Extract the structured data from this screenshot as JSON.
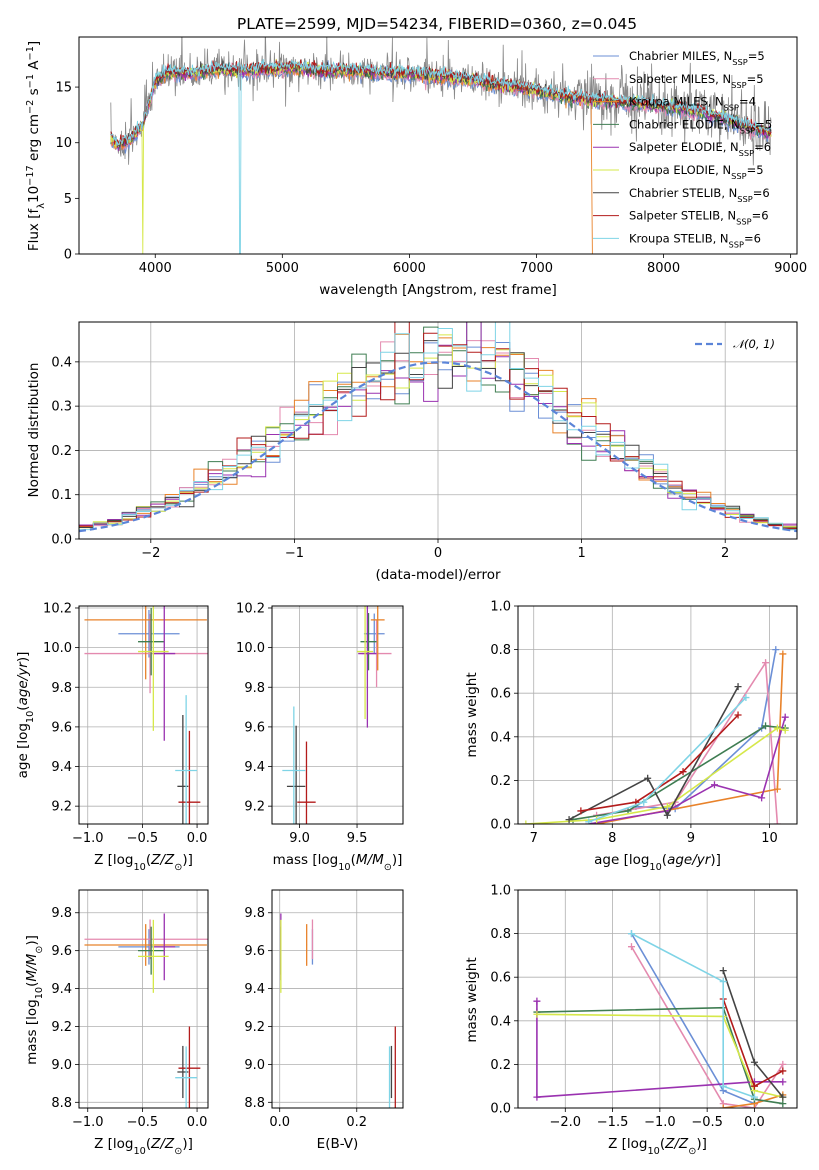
{
  "chart_data": [
    {
      "id": "spectrum",
      "type": "line",
      "title": "PLATE=2599, MJD=54234, FIBERID=0360, z=0.045",
      "xlabel": "wavelength [Angstrom, rest frame]",
      "ylabel": "Flux [f_λ10^-17 erg cm^-2 s^-1 A^-1]",
      "xlim": [
        3400,
        9050
      ],
      "ylim": [
        0,
        19.5
      ],
      "xticks": [
        4000,
        5000,
        6000,
        7000,
        8000,
        9000
      ],
      "yticks": [
        0,
        5,
        10,
        15
      ],
      "grid": false,
      "legend_location": "top-right",
      "legend": [
        {
          "label": "Chabrier MILES, N_SSP=5",
          "color": "#6b8fd6"
        },
        {
          "label": "Salpeter MILES, N_SSP=5",
          "color": "#e48aaf"
        },
        {
          "label": "Kroupa MILES, N_SSP=4",
          "color": "#e8822a"
        },
        {
          "label": "Chabrier ELODIE, N_SSP=5",
          "color": "#3f7d52"
        },
        {
          "label": "Salpeter ELODIE, N_SSP=6",
          "color": "#9a32b0"
        },
        {
          "label": "Kroupa ELODIE, N_SSP=5",
          "color": "#d6e84a"
        },
        {
          "label": "Chabrier STELIB, N_SSP=6",
          "color": "#444444"
        },
        {
          "label": "Salpeter STELIB, N_SSP=6",
          "color": "#b31b1b"
        },
        {
          "label": "Kroupa STELIB, N_SSP=6",
          "color": "#7fd4e6"
        }
      ],
      "data_color": "#888888",
      "continuum_knots": {
        "wavelength": [
          3650,
          3700,
          3800,
          3900,
          3950,
          4000,
          4100,
          4300,
          4500,
          4700,
          4900,
          5100,
          5300,
          5500,
          5700,
          5900,
          6100,
          6300,
          6500,
          6700,
          6900,
          7100,
          7300,
          7500,
          7700,
          7900,
          8100,
          8300,
          8500,
          8700,
          8850
        ],
        "flux": [
          10.5,
          9.8,
          10.2,
          11.5,
          13.5,
          15.5,
          16.3,
          16.2,
          16.6,
          16.5,
          16.6,
          16.7,
          16.4,
          16.5,
          16.3,
          16.3,
          16.1,
          15.9,
          15.6,
          15.2,
          14.9,
          14.4,
          14.0,
          13.8,
          13.6,
          13.4,
          13.1,
          12.7,
          12.1,
          11.3,
          10.8
        ]
      }
    },
    {
      "id": "residuals",
      "type": "histogram",
      "xlabel": "(data-model)/error",
      "ylabel": "Normed distribution",
      "xlim": [
        -2.5,
        2.5
      ],
      "ylim": [
        0,
        0.49
      ],
      "xticks": [
        -2,
        -1,
        0,
        1,
        2
      ],
      "yticks": [
        0.0,
        0.1,
        0.2,
        0.3,
        0.4
      ],
      "grid": true,
      "legend_location": "top-right",
      "legend": [
        {
          "label": "𝒩(0, 1)",
          "color": "#5b84d8",
          "style": "dashed"
        }
      ],
      "bin_width": 0.1
    },
    {
      "id": "age_vs_Z",
      "type": "errorbar",
      "xlabel": "Z [log10(Z/Z⊙)]",
      "ylabel": "age [log10(age/yr)]",
      "xlim": [
        -1.08,
        0.1
      ],
      "ylim": [
        9.11,
        10.21
      ],
      "xticks": [
        -1.0,
        -0.5,
        0.0
      ],
      "yticks": [
        9.2,
        9.4,
        9.6,
        9.8,
        10.0,
        10.2
      ],
      "grid": true
    },
    {
      "id": "age_vs_mass",
      "type": "errorbar",
      "xlabel": "mass [log10(M/M⊙)]",
      "ylabel": "",
      "xlim": [
        8.76,
        9.9
      ],
      "ylim": [
        9.11,
        10.21
      ],
      "xticks": [
        9.0,
        9.5
      ],
      "yticks": [
        9.2,
        9.4,
        9.6,
        9.8,
        10.0,
        10.2
      ],
      "grid": true
    },
    {
      "id": "massweight_vs_age",
      "type": "line",
      "xlabel": "age [log10(age/yr)]",
      "ylabel": "mass weight",
      "xlim": [
        6.8,
        10.35
      ],
      "ylim": [
        0,
        1.0
      ],
      "xticks": [
        7,
        8,
        9,
        10
      ],
      "yticks": [
        0.0,
        0.2,
        0.4,
        0.6,
        0.8,
        1.0
      ],
      "grid": true
    },
    {
      "id": "mass_vs_Z",
      "type": "errorbar",
      "xlabel": "Z [log10(Z/Z⊙)]",
      "ylabel": "mass [log10(M/M⊙)]",
      "xlim": [
        -1.08,
        0.1
      ],
      "ylim": [
        8.77,
        9.92
      ],
      "xticks": [
        -1.0,
        -0.5,
        0.0
      ],
      "yticks": [
        8.8,
        9.0,
        9.2,
        9.4,
        9.6,
        9.8
      ],
      "grid": true
    },
    {
      "id": "mass_vs_ebv",
      "type": "errorbar",
      "xlabel": "E(B-V)",
      "ylabel": "",
      "xlim": [
        -0.02,
        0.32
      ],
      "ylim": [
        8.77,
        9.92
      ],
      "xticks": [
        0.0,
        0.2
      ],
      "yticks": [
        8.8,
        9.0,
        9.2,
        9.4,
        9.6,
        9.8
      ],
      "grid": true
    },
    {
      "id": "massweight_vs_Z",
      "type": "line",
      "xlabel": "Z [log10(Z/Z⊙)]",
      "ylabel": "mass weight",
      "xlim": [
        -2.5,
        0.45
      ],
      "ylim": [
        0,
        1.0
      ],
      "xticks": [
        -2.0,
        -1.5,
        -1.0,
        -0.5,
        0.0
      ],
      "yticks": [
        0.0,
        0.2,
        0.4,
        0.6,
        0.8,
        1.0
      ],
      "grid": true
    }
  ],
  "models": [
    {
      "name": "Chabrier MILES",
      "color": "#6b8fd6",
      "age": [
        10.07,
        0.12
      ],
      "mass": [
        9.62,
        0.17
      ],
      "Z": [
        -0.44,
        0.28
      ],
      "ebv": 0.085,
      "mass_age": [
        9.65,
        10.07,
        0.09
      ],
      "w_age": [
        [
          8.3,
          0.08
        ],
        [
          8.8,
          0.07
        ],
        [
          9.9,
          0.44
        ],
        [
          10.08,
          0.8
        ]
      ],
      "w_Z": [
        [
          -1.3,
          0.8
        ],
        [
          -0.33,
          0.08
        ],
        [
          0.0,
          0.02
        ]
      ]
    },
    {
      "name": "Salpeter MILES",
      "color": "#e48aaf",
      "age": [
        9.97,
        0.2
      ],
      "mass": [
        9.66,
        0.19
      ],
      "Z": [
        -0.43,
        0.6
      ],
      "ebv": 0.085,
      "mass_age": [
        9.67,
        9.97,
        0.13
      ],
      "w_age": [
        [
          7.8,
          0.04
        ],
        [
          8.8,
          0.1
        ],
        [
          9.95,
          0.74
        ],
        [
          10.1,
          0.0
        ]
      ],
      "w_Z": [
        [
          -1.3,
          0.74
        ],
        [
          -0.33,
          0.02
        ],
        [
          0.0,
          0.0
        ],
        [
          0.3,
          0.2
        ]
      ]
    },
    {
      "name": "Kroupa MILES",
      "color": "#e8822a",
      "age": [
        10.14,
        0.3
      ],
      "mass": [
        9.63,
        0.2
      ],
      "Z": [
        -0.47,
        0.56
      ],
      "ebv": 0.07,
      "mass_age": [
        9.68,
        10.14,
        0.06
      ],
      "w_age": [
        [
          7.8,
          0.0
        ],
        [
          10.1,
          0.16
        ],
        [
          10.17,
          0.78
        ]
      ],
      "w_Z": [
        [
          -0.33,
          0.0
        ],
        [
          0.0,
          0.02
        ],
        [
          0.3,
          0.06
        ]
      ]
    },
    {
      "name": "Chabrier ELODIE",
      "color": "#3f7d52",
      "age": [
        10.03,
        0.17
      ],
      "mass": [
        9.6,
        0.23
      ],
      "Z": [
        -0.42,
        0.12
      ],
      "ebv": 0.003,
      "mass_age": [
        9.6,
        10.03,
        0.07
      ],
      "w_age": [
        [
          7.5,
          0.02
        ],
        [
          8.2,
          0.06
        ],
        [
          9.95,
          0.45
        ],
        [
          10.2,
          0.44
        ]
      ],
      "w_Z": [
        [
          -2.3,
          0.44
        ],
        [
          -0.33,
          0.46
        ],
        [
          0.0,
          0.04
        ],
        [
          0.3,
          0.02
        ]
      ]
    },
    {
      "name": "Salpeter ELODIE",
      "color": "#9a32b0",
      "age": [
        9.97,
        0.44
      ],
      "mass": [
        9.62,
        0.32
      ],
      "Z": [
        -0.3,
        0.1
      ],
      "ebv": 0.003,
      "mass_age": [
        9.59,
        9.97,
        0.08
      ],
      "w_age": [
        [
          7.7,
          0.0
        ],
        [
          8.7,
          0.06
        ],
        [
          9.3,
          0.18
        ],
        [
          9.9,
          0.12
        ],
        [
          10.2,
          0.49
        ]
      ],
      "w_Z": [
        [
          -2.3,
          0.49
        ],
        [
          -2.3,
          0.05
        ],
        [
          0.0,
          0.12
        ],
        [
          0.3,
          0.12
        ]
      ]
    },
    {
      "name": "Kroupa ELODIE",
      "color": "#d6e84a",
      "age": [
        9.98,
        0.4
      ],
      "mass": [
        9.57,
        0.35
      ],
      "Z": [
        -0.4,
        0.14
      ],
      "ebv": 0.003,
      "mass_age": [
        9.57,
        9.98,
        0.07
      ],
      "w_age": [
        [
          6.9,
          0.0
        ],
        [
          7.8,
          0.02
        ],
        [
          8.7,
          0.08
        ],
        [
          10.1,
          0.44
        ],
        [
          10.2,
          0.43
        ]
      ],
      "w_Z": [
        [
          -2.3,
          0.43
        ],
        [
          -0.33,
          0.42
        ],
        [
          0.0,
          0.08
        ],
        [
          0.3,
          0.05
        ]
      ]
    },
    {
      "name": "Chabrier STELIB",
      "color": "#444444",
      "age": [
        9.3,
        0.36
      ],
      "mass": [
        8.96,
        0.25
      ],
      "Z": [
        -0.13,
        0.05
      ],
      "ebv": 0.29,
      "mass_age": [
        8.97,
        9.3,
        0.08
      ],
      "w_age": [
        [
          7.45,
          0.02
        ],
        [
          8.45,
          0.21
        ],
        [
          8.7,
          0.04
        ],
        [
          9.6,
          0.63
        ]
      ],
      "w_Z": [
        [
          -0.33,
          0.63
        ],
        [
          0.0,
          0.21
        ],
        [
          0.3,
          0.05
        ]
      ]
    },
    {
      "name": "Salpeter STELIB",
      "color": "#b31b1b",
      "age": [
        9.22,
        0.36
      ],
      "mass": [
        8.98,
        0.4
      ],
      "Z": [
        -0.07,
        0.1
      ],
      "ebv": 0.3,
      "mass_age": [
        9.06,
        9.22,
        0.08
      ],
      "w_age": [
        [
          7.6,
          0.06
        ],
        [
          8.3,
          0.1
        ],
        [
          8.9,
          0.24
        ],
        [
          9.6,
          0.5
        ]
      ],
      "w_Z": [
        [
          -0.33,
          0.5
        ],
        [
          0.0,
          0.1
        ],
        [
          0.3,
          0.17
        ]
      ]
    },
    {
      "name": "Kroupa STELIB",
      "color": "#7fd4e6",
      "age": [
        9.38,
        0.38
      ],
      "mass": [
        8.93,
        0.3
      ],
      "Z": [
        -0.1,
        0.1
      ],
      "ebv": 0.285,
      "mass_age": [
        8.95,
        9.38,
        0.1
      ],
      "w_age": [
        [
          7.7,
          0.01
        ],
        [
          8.4,
          0.1
        ],
        [
          9.7,
          0.58
        ]
      ],
      "w_Z": [
        [
          -1.3,
          0.8
        ],
        [
          -0.33,
          0.58
        ],
        [
          -0.33,
          0.1
        ],
        [
          0.0,
          0.05
        ]
      ]
    }
  ]
}
